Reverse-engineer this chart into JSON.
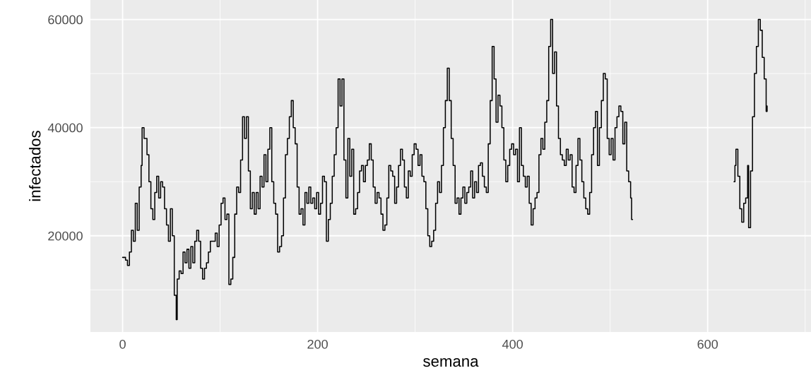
{
  "chart_data": {
    "type": "step",
    "xlabel": "semana",
    "ylabel": "infectados",
    "xlim": [
      -33,
      706
    ],
    "ylim": [
      2200,
      63600
    ],
    "xticks": [
      0,
      200,
      400,
      600
    ],
    "yticks": [
      20000,
      40000,
      60000
    ],
    "grid": true,
    "series": [
      {
        "color": "#000000",
        "x": [
          0,
          3,
          5,
          7,
          9,
          11,
          13,
          15,
          17,
          19,
          20,
          22,
          25,
          27,
          29,
          31,
          33,
          35,
          37,
          39,
          41,
          43,
          45,
          47,
          49,
          51,
          53,
          55,
          56,
          58,
          60,
          62,
          64,
          66,
          68,
          70,
          72,
          74,
          76,
          78,
          80,
          82,
          84,
          86,
          88,
          90,
          92,
          95,
          97,
          99,
          101,
          103,
          105,
          107,
          109,
          111,
          113,
          115,
          117,
          119,
          121,
          123,
          125,
          127,
          129,
          131,
          133,
          135,
          137,
          139,
          141,
          143,
          145,
          147,
          149,
          151,
          153,
          155,
          157,
          159,
          161,
          163,
          165,
          167,
          169,
          171,
          173,
          175,
          177,
          179,
          181,
          183,
          185,
          187,
          189,
          191,
          193,
          195,
          197,
          199,
          201,
          203,
          205,
          207,
          209,
          211,
          213,
          215,
          217,
          219,
          221,
          223,
          225,
          227,
          229,
          231,
          233,
          235,
          237,
          239,
          241,
          243,
          245,
          247,
          249,
          251,
          253,
          255,
          257,
          259,
          261,
          263,
          265,
          267,
          269,
          271,
          273,
          275,
          277,
          279,
          281,
          283,
          285,
          287,
          289,
          291,
          293,
          295,
          297,
          299,
          301,
          303,
          305,
          307,
          309,
          311,
          313,
          315,
          317,
          319,
          321,
          323,
          325,
          327,
          329,
          331,
          333,
          335,
          337,
          339,
          341,
          343,
          345,
          347,
          349,
          351,
          353,
          355,
          357,
          359,
          361,
          363,
          365,
          367,
          369,
          371,
          373,
          375,
          377,
          379,
          381,
          383,
          385,
          387,
          389,
          391,
          393,
          395,
          397,
          399,
          401,
          403,
          405,
          407,
          409,
          411,
          413,
          415,
          417,
          419,
          421,
          423,
          425,
          427,
          429,
          431,
          433,
          435,
          437,
          439,
          441,
          443,
          445,
          447,
          449,
          451,
          453,
          455,
          457,
          459,
          461,
          463,
          465,
          467,
          469,
          471,
          473,
          475,
          477,
          479,
          481,
          483,
          485,
          487,
          489,
          491,
          493,
          495,
          497,
          499,
          501,
          503,
          505,
          507,
          509,
          511,
          513,
          515,
          517,
          519,
          521,
          522,
          523,
          627,
          628,
          629,
          631,
          633,
          635,
          637,
          639,
          641,
          642,
          644,
          646,
          648,
          650,
          652,
          654,
          656,
          658,
          660,
          661
        ],
        "values": [
          16000,
          15500,
          14500,
          17000,
          21000,
          19000,
          26000,
          21000,
          29000,
          33000,
          40000,
          38000,
          35000,
          30000,
          25000,
          23000,
          28000,
          31000,
          27000,
          30000,
          29000,
          25000,
          22000,
          19000,
          25000,
          20000,
          9000,
          4500,
          12000,
          13500,
          13000,
          17000,
          15000,
          17500,
          14000,
          18000,
          15000,
          19000,
          21000,
          19000,
          14000,
          12000,
          14000,
          15000,
          17000,
          19000,
          19000,
          20500,
          18000,
          22000,
          26000,
          27000,
          23000,
          24000,
          11000,
          12000,
          16000,
          24000,
          29000,
          28000,
          34000,
          42000,
          38000,
          42000,
          32000,
          25000,
          28000,
          24000,
          28000,
          25000,
          31000,
          29000,
          35000,
          30000,
          36000,
          40000,
          30000,
          26000,
          24000,
          17000,
          18000,
          20000,
          27000,
          35000,
          38000,
          42000,
          45000,
          40000,
          37000,
          29000,
          24000,
          25000,
          22000,
          28000,
          26000,
          29000,
          26000,
          27000,
          25000,
          28000,
          24000,
          26000,
          31000,
          30000,
          19000,
          23000,
          26000,
          31000,
          35000,
          40000,
          49000,
          44000,
          49000,
          34000,
          27000,
          38000,
          31000,
          36000,
          24000,
          25000,
          28000,
          32000,
          33000,
          30000,
          33000,
          34000,
          37000,
          34000,
          29000,
          26000,
          28000,
          27000,
          24000,
          21000,
          22000,
          27000,
          33000,
          32000,
          31000,
          26000,
          29000,
          33000,
          36000,
          34000,
          29000,
          27000,
          32000,
          31000,
          35000,
          37000,
          36000,
          33000,
          35000,
          31000,
          30000,
          25000,
          20000,
          18000,
          19000,
          21000,
          26000,
          30000,
          28000,
          33000,
          40000,
          45000,
          51000,
          45000,
          38000,
          33000,
          26000,
          27000,
          24000,
          27000,
          29000,
          26000,
          28000,
          29000,
          32000,
          27000,
          30000,
          28000,
          33000,
          33500,
          31000,
          29000,
          28000,
          37000,
          45000,
          55000,
          49000,
          41000,
          46000,
          44000,
          40000,
          34000,
          30000,
          33000,
          36000,
          37000,
          35000,
          36000,
          30000,
          40000,
          33000,
          31000,
          29000,
          31000,
          26000,
          22000,
          25000,
          27000,
          28000,
          35000,
          38000,
          36000,
          41000,
          45000,
          55000,
          60000,
          50000,
          54000,
          44000,
          38000,
          35000,
          34000,
          33000,
          36000,
          34000,
          35000,
          29000,
          28000,
          33000,
          38000,
          34000,
          30000,
          27000,
          25000,
          24000,
          28000,
          35000,
          40000,
          43000,
          33000,
          40000,
          45000,
          50000,
          49000,
          38000,
          35000,
          38000,
          34000,
          40000,
          42000,
          44000,
          43000,
          37000,
          41000,
          32000,
          30000,
          27000,
          23000,
          null,
          30000,
          33000,
          36000,
          31000,
          25000,
          22500,
          26000,
          27000,
          33000,
          21500,
          32000,
          42000,
          50000,
          55000,
          60000,
          58000,
          53000,
          49000,
          43000,
          44000
        ]
      }
    ]
  }
}
